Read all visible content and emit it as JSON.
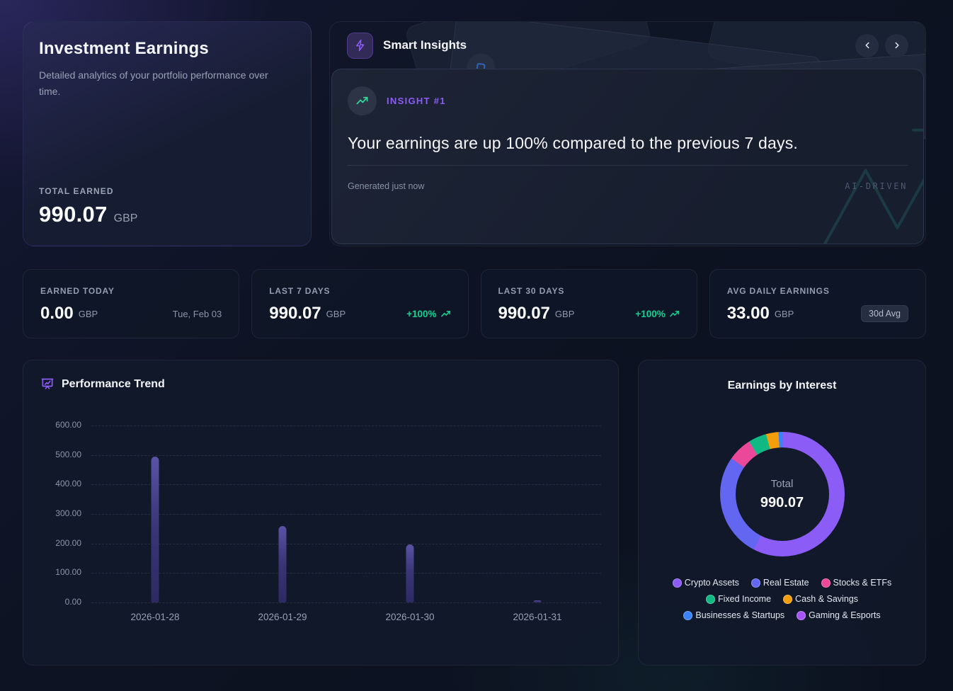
{
  "hero": {
    "title": "Investment Earnings",
    "subtitle": "Detailed analytics of your portfolio performance over time.",
    "total_label": "TOTAL EARNED",
    "total_value": "990.07",
    "currency": "GBP"
  },
  "insights": {
    "title": "Smart Insights",
    "badge_label": "INSIGHT #1",
    "headline": "Your earnings are up 100% compared to the previous 7 days.",
    "generated": "Generated just now",
    "watermark": "AI-DRIVEN"
  },
  "stats": [
    {
      "label": "EARNED TODAY",
      "value": "0.00",
      "currency": "GBP",
      "extra": "Tue, Feb 03"
    },
    {
      "label": "LAST 7 DAYS",
      "value": "990.07",
      "currency": "GBP",
      "extra": "+100%"
    },
    {
      "label": "LAST 30 DAYS",
      "value": "990.07",
      "currency": "GBP",
      "extra": "+100%"
    },
    {
      "label": "AVG DAILY EARNINGS",
      "value": "33.00",
      "currency": "GBP",
      "extra": "30d Avg"
    }
  ],
  "icons": {
    "insights_header": "lightning-bolt",
    "insight_badge": "trending-up",
    "trend_header": "presentation-chart",
    "nav_prev": "chevron-left",
    "nav_next": "chevron-right",
    "stat_trend": "trending-up-mini",
    "watermark": "trending-up-large"
  },
  "colors": {
    "accent_purple": "#8b5cf6",
    "positive_green": "#10d392",
    "bar_indigo": "#46408c",
    "watermark_teal": "#2b9d8f"
  },
  "chart_data": [
    {
      "type": "bar",
      "title": "Performance Trend",
      "categories": [
        "2026-01-28",
        "2026-01-29",
        "2026-01-30",
        "2026-01-31"
      ],
      "values": [
        495,
        260,
        198,
        8
      ],
      "ylim": [
        0,
        600
      ],
      "yticks": [
        "600.00",
        "500.00",
        "400.00",
        "300.00",
        "200.00",
        "100.00",
        "0.00"
      ],
      "grid": "horizontal-dashed",
      "legend": "none"
    },
    {
      "type": "pie",
      "title": "Earnings by Interest",
      "center_label": "Total",
      "center_value": "990.07",
      "total": 990.07,
      "segments": [
        {
          "label": "Crypto Assets",
          "value": 570,
          "color": "#8b5cf6"
        },
        {
          "label": "Real Estate",
          "value": 269,
          "color": "#6366f1"
        },
        {
          "label": "Stocks & ETFs",
          "value": 62,
          "color": "#ec4899"
        },
        {
          "label": "Fixed Income",
          "value": 47,
          "color": "#10b981"
        },
        {
          "label": "Cash & Savings",
          "value": 32,
          "color": "#f59e0b"
        },
        {
          "label": "Businesses & Startups",
          "value": 10,
          "color": "#3b82f6"
        },
        {
          "label": "Gaming & Esports",
          "value": 0,
          "color": "#a855f7"
        }
      ],
      "legend_position": "bottom"
    }
  ]
}
